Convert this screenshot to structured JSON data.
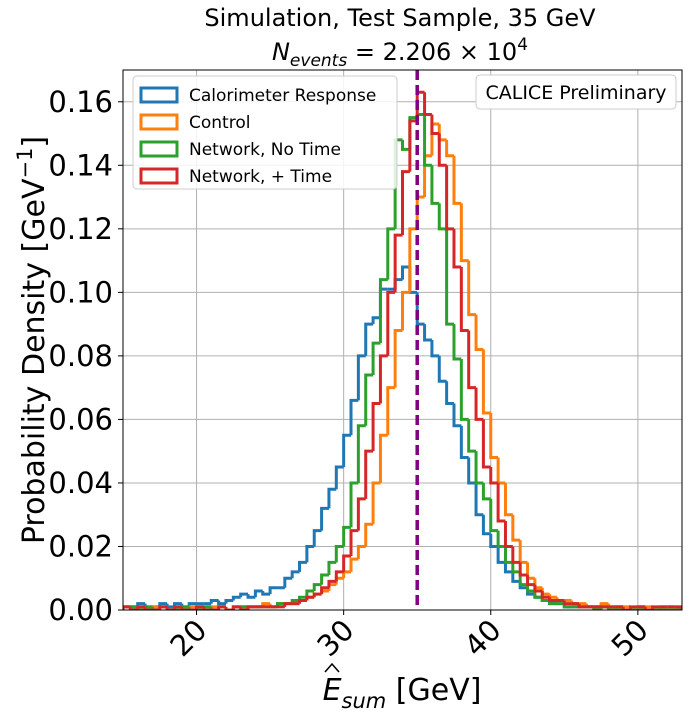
{
  "chart_data": {
    "type": "histogram",
    "title": "Simulation, Test Sample, 35 GeV",
    "subtitle": {
      "base": "N",
      "sub": "events",
      "rest": " = 2.206 × 10",
      "sup": "4"
    },
    "xlabel": {
      "base": "E",
      "sub": "sum",
      "rest": " [GeV]"
    },
    "ylabel": {
      "text": "Probability Density [GeV",
      "sup": "−1",
      "end": "]"
    },
    "annotation": "CALICE Preliminary",
    "bins": [
      15,
      15.5,
      16,
      16.5,
      17,
      17.5,
      18,
      18.5,
      19,
      19.5,
      20,
      20.5,
      21,
      21.5,
      22,
      22.5,
      23,
      23.5,
      24,
      24.5,
      25,
      25.5,
      26,
      26.5,
      27,
      27.5,
      28,
      28.5,
      29,
      29.5,
      30,
      30.5,
      31,
      31.5,
      32,
      32.5,
      33,
      33.5,
      34,
      34.5,
      35,
      35.5,
      36,
      36.5,
      37,
      37.5,
      38,
      38.5,
      39,
      39.5,
      40,
      40.5,
      41,
      41.5,
      42,
      42.5,
      43,
      43.5,
      44,
      44.5,
      45,
      45.5,
      46,
      46.5,
      47,
      47.5,
      48,
      48.5,
      49,
      49.5,
      50,
      50.5,
      51,
      51.5,
      52,
      52.5,
      53
    ],
    "series": [
      {
        "name": "Calorimeter Response",
        "color": "#1f77b4",
        "values": [
          0.001,
          0.001,
          0.002,
          0.001,
          0.001,
          0.002,
          0.001,
          0.002,
          0.001,
          0.002,
          0.002,
          0.002,
          0.003,
          0.002,
          0.003,
          0.004,
          0.005,
          0.004,
          0.006,
          0.005,
          0.007,
          0.007,
          0.01,
          0.012,
          0.015,
          0.02,
          0.025,
          0.032,
          0.038,
          0.045,
          0.055,
          0.066,
          0.08,
          0.09,
          0.092,
          0.101,
          0.101,
          0.104,
          0.108,
          0.1,
          0.09,
          0.085,
          0.08,
          0.072,
          0.065,
          0.058,
          0.048,
          0.04,
          0.03,
          0.024,
          0.02,
          0.015,
          0.012,
          0.009,
          0.007,
          0.005,
          0.004,
          0.003,
          0.002,
          0.002,
          0.001,
          0.001,
          0.001,
          0.001,
          0.001,
          0.001,
          0,
          0.001,
          0,
          0,
          0.001,
          0,
          0,
          0,
          0,
          0
        ]
      },
      {
        "name": "Control",
        "color": "#ff7f0e",
        "values": [
          0.001,
          0,
          0.001,
          0,
          0.001,
          0.001,
          0,
          0.001,
          0,
          0.001,
          0.001,
          0,
          0.001,
          0.001,
          0,
          0.001,
          0.001,
          0.001,
          0.001,
          0.002,
          0.001,
          0.002,
          0.002,
          0.002,
          0.003,
          0.004,
          0.005,
          0.006,
          0.008,
          0.01,
          0.012,
          0.016,
          0.02,
          0.027,
          0.04,
          0.055,
          0.07,
          0.088,
          0.1,
          0.12,
          0.13,
          0.143,
          0.153,
          0.148,
          0.143,
          0.128,
          0.11,
          0.093,
          0.082,
          0.062,
          0.048,
          0.04,
          0.03,
          0.022,
          0.015,
          0.01,
          0.007,
          0.005,
          0.004,
          0.003,
          0.003,
          0.002,
          0.002,
          0.001,
          0.001,
          0.002,
          0.001,
          0.001,
          0.001,
          0,
          0.001,
          0.001,
          0,
          0.001,
          0.001,
          0.001
        ]
      },
      {
        "name": "Network, No Time",
        "color": "#2ca02c",
        "values": [
          0.001,
          0.001,
          0,
          0.001,
          0,
          0.001,
          0,
          0,
          0.001,
          0,
          0,
          0.001,
          0,
          0.001,
          0,
          0.001,
          0.001,
          0.001,
          0.001,
          0.001,
          0.001,
          0.002,
          0.002,
          0.003,
          0.004,
          0.006,
          0.008,
          0.011,
          0.015,
          0.02,
          0.026,
          0.04,
          0.058,
          0.074,
          0.084,
          0.104,
          0.12,
          0.148,
          0.145,
          0.155,
          0.156,
          0.14,
          0.128,
          0.12,
          0.09,
          0.079,
          0.06,
          0.05,
          0.04,
          0.035,
          0.025,
          0.02,
          0.015,
          0.012,
          0.008,
          0.006,
          0.004,
          0.003,
          0.002,
          0.002,
          0.001,
          0.001,
          0.001,
          0.001,
          0,
          0.001,
          0,
          0,
          0,
          0,
          0,
          0,
          0,
          0,
          0,
          0
        ]
      },
      {
        "name": "Network, + Time",
        "color": "#d62728",
        "values": [
          0.001,
          0,
          0.001,
          0,
          0,
          0.001,
          0,
          0.001,
          0,
          0,
          0.001,
          0,
          0,
          0.001,
          0,
          0.001,
          0,
          0.001,
          0.001,
          0.001,
          0.001,
          0.001,
          0.002,
          0.002,
          0.003,
          0.004,
          0.005,
          0.007,
          0.009,
          0.012,
          0.017,
          0.025,
          0.035,
          0.05,
          0.065,
          0.08,
          0.1,
          0.118,
          0.138,
          0.154,
          0.163,
          0.156,
          0.15,
          0.14,
          0.12,
          0.108,
          0.088,
          0.07,
          0.06,
          0.045,
          0.04,
          0.028,
          0.02,
          0.015,
          0.011,
          0.008,
          0.006,
          0.004,
          0.003,
          0.003,
          0.002,
          0.002,
          0.001,
          0.001,
          0.001,
          0.001,
          0.001,
          0.001,
          0,
          0.001,
          0.001,
          0,
          0.001,
          0.001,
          0.001,
          0.001
        ]
      }
    ],
    "vline": {
      "x": 35,
      "color": "#800080"
    },
    "xlim": [
      15,
      53
    ],
    "ylim": [
      0,
      0.17
    ],
    "xticks": [
      20,
      30,
      40,
      50
    ],
    "yticks": [
      {
        "value": 0,
        "label": "0.00"
      },
      {
        "value": 0.02,
        "label": "0.02"
      },
      {
        "value": 0.04,
        "label": "0.04"
      },
      {
        "value": 0.06,
        "label": "0.06"
      },
      {
        "value": 0.08,
        "label": "0.08"
      },
      {
        "value": 0.1,
        "label": "0.10"
      },
      {
        "value": 0.12,
        "label": "0.12"
      },
      {
        "value": 0.14,
        "label": "0.14"
      },
      {
        "value": 0.16,
        "label": "0.16"
      }
    ],
    "grid": true,
    "legend": "upper left"
  }
}
